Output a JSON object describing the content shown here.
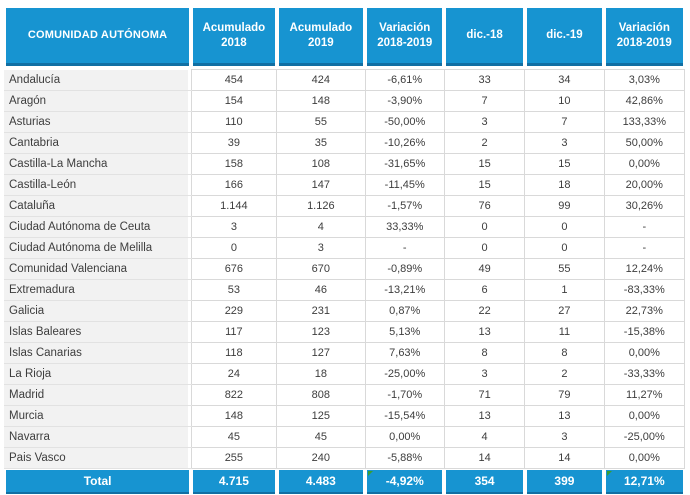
{
  "chart_data": {
    "type": "table",
    "columns": [
      "COMUNIDAD AUTÓNOMA",
      "Acumulado 2018",
      "Acumulado 2019",
      "Variación 2018-2019",
      "dic.-18",
      "dic.-19",
      "Variación 2018-2019"
    ],
    "rows": [
      {
        "name": "Andalucía",
        "values": [
          "454",
          "424",
          "-6,61%",
          "33",
          "34",
          "3,03%"
        ]
      },
      {
        "name": "Aragón",
        "values": [
          "154",
          "148",
          "-3,90%",
          "7",
          "10",
          "42,86%"
        ]
      },
      {
        "name": "Asturias",
        "values": [
          "110",
          "55",
          "-50,00%",
          "3",
          "7",
          "133,33%"
        ]
      },
      {
        "name": "Cantabria",
        "values": [
          "39",
          "35",
          "-10,26%",
          "2",
          "3",
          "50,00%"
        ]
      },
      {
        "name": "Castilla-La Mancha",
        "values": [
          "158",
          "108",
          "-31,65%",
          "15",
          "15",
          "0,00%"
        ]
      },
      {
        "name": "Castilla-León",
        "values": [
          "166",
          "147",
          "-11,45%",
          "15",
          "18",
          "20,00%"
        ]
      },
      {
        "name": "Cataluña",
        "values": [
          "1.144",
          "1.126",
          "-1,57%",
          "76",
          "99",
          "30,26%"
        ]
      },
      {
        "name": "Ciudad Autónoma de Ceuta",
        "values": [
          "3",
          "4",
          "33,33%",
          "0",
          "0",
          "-"
        ]
      },
      {
        "name": "Ciudad Autónoma de Melilla",
        "values": [
          "0",
          "3",
          "-",
          "0",
          "0",
          "-"
        ]
      },
      {
        "name": "Comunidad Valenciana",
        "values": [
          "676",
          "670",
          "-0,89%",
          "49",
          "55",
          "12,24%"
        ]
      },
      {
        "name": "Extremadura",
        "values": [
          "53",
          "46",
          "-13,21%",
          "6",
          "1",
          "-83,33%"
        ]
      },
      {
        "name": "Galicia",
        "values": [
          "229",
          "231",
          "0,87%",
          "22",
          "27",
          "22,73%"
        ]
      },
      {
        "name": "Islas Baleares",
        "values": [
          "117",
          "123",
          "5,13%",
          "13",
          "11",
          "-15,38%"
        ]
      },
      {
        "name": "Islas Canarias",
        "values": [
          "118",
          "127",
          "7,63%",
          "8",
          "8",
          "0,00%"
        ]
      },
      {
        "name": "La Rioja",
        "values": [
          "24",
          "18",
          "-25,00%",
          "3",
          "2",
          "-33,33%"
        ]
      },
      {
        "name": "Madrid",
        "values": [
          "822",
          "808",
          "-1,70%",
          "71",
          "79",
          "11,27%"
        ]
      },
      {
        "name": "Murcia",
        "values": [
          "148",
          "125",
          "-15,54%",
          "13",
          "13",
          "0,00%"
        ]
      },
      {
        "name": "Navarra",
        "values": [
          "45",
          "45",
          "0,00%",
          "4",
          "3",
          "-25,00%"
        ]
      },
      {
        "name": "Pais Vasco",
        "values": [
          "255",
          "240",
          "-5,88%",
          "14",
          "14",
          "0,00%"
        ]
      }
    ],
    "total": {
      "label": "Total",
      "values": [
        "4.715",
        "4.483",
        "-4,92%",
        "354",
        "399",
        "12,71%"
      ]
    }
  },
  "colors": {
    "header_blue": "#1794d1",
    "header_blue_dark": "#116fa3",
    "grid_gray": "#d9d9d9",
    "label_bg": "#f2f2f2",
    "body_text": "#3d3d3d",
    "header_text": "#ffffff",
    "error_indicator_green": "#3a9d35"
  }
}
